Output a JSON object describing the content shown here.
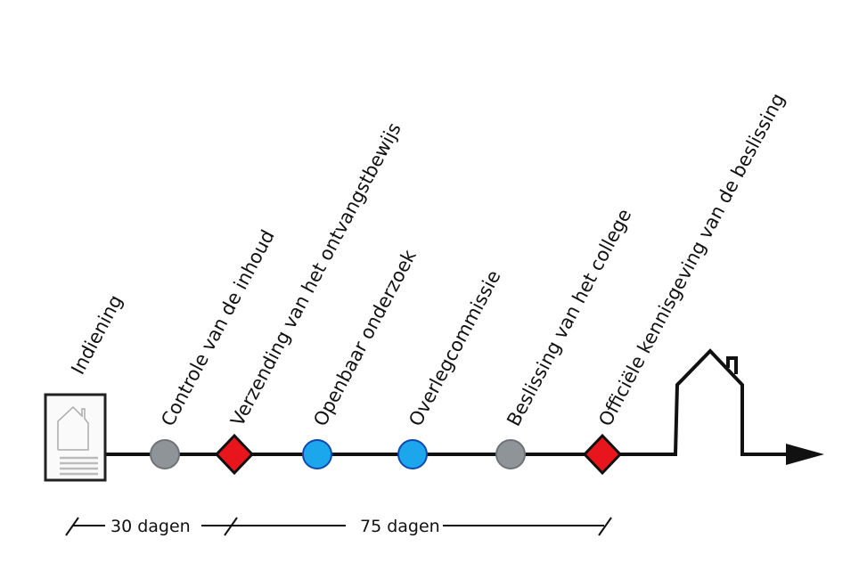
{
  "steps": [
    {
      "label": "Indiening",
      "marker": "document"
    },
    {
      "label": "Controle van de inhoud",
      "marker": "circle",
      "color": "#8f9498"
    },
    {
      "label": "Verzending van het ontvangstbewijs",
      "marker": "diamond",
      "color": "#e8161c"
    },
    {
      "label": "Openbaar onderzoek",
      "marker": "circle",
      "color": "#1ca6ec"
    },
    {
      "label": "Overlegcommissie",
      "marker": "circle",
      "color": "#1ca6ec"
    },
    {
      "label": "Beslissing van het college",
      "marker": "circle",
      "color": "#8f9498"
    },
    {
      "label": "Officiële kennisgeving van de beslissing",
      "marker": "diamond",
      "color": "#e8161c"
    }
  ],
  "durations": [
    {
      "label": "30 dagen"
    },
    {
      "label": "75 dagen"
    }
  ],
  "colors": {
    "line": "#111111",
    "circle_stroke": "#6f7377",
    "blue_stroke": "#1048b0"
  }
}
